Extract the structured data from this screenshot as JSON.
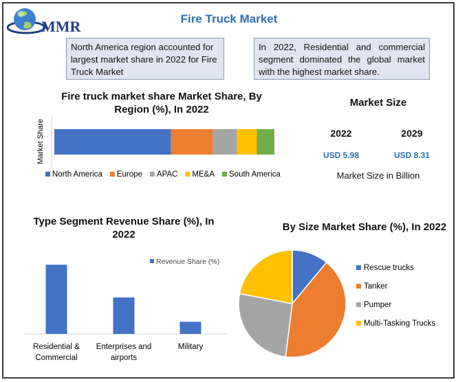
{
  "header": {
    "title": "Fire Truck Market",
    "logo_text": "MMR"
  },
  "notes": {
    "left": "North America region accounted for largest market share in 2022 for Fire Truck Market",
    "right": "In 2022, Residential and commercial segment dominated the global market with the highest market share."
  },
  "market_size": {
    "title": "Market Size",
    "years": [
      "2022",
      "2029"
    ],
    "values": [
      "USD 5.98",
      "USD 8.31"
    ],
    "unit_label": "Market Size in Billion"
  },
  "colors": {
    "blue": "#4472c4",
    "orange": "#ed7d31",
    "gray": "#a5a5a5",
    "yellow": "#ffc000",
    "green": "#70ad47",
    "title_blue": "#2b6fb6"
  },
  "chart_data": [
    {
      "type": "bar",
      "orientation": "horizontal-stacked",
      "title": "Fire truck market share Market Share, By Region (%), In 2022",
      "ylabel": "Market Share",
      "xlim": [
        0,
        100
      ],
      "legend_position": "bottom",
      "series": [
        {
          "name": "North America",
          "value": 53,
          "color": "#4472c4"
        },
        {
          "name": "Europe",
          "value": 19,
          "color": "#ed7d31"
        },
        {
          "name": "APAC",
          "value": 11,
          "color": "#a5a5a5"
        },
        {
          "name": "ME&A",
          "value": 9,
          "color": "#ffc000"
        },
        {
          "name": "South America",
          "value": 8,
          "color": "#70ad47"
        }
      ]
    },
    {
      "type": "bar",
      "title": "Type Segment Revenue Share (%), In 2022",
      "categories": [
        "Residential & Commercial",
        "Enterprises and airports",
        "Military"
      ],
      "series": [
        {
          "name": "Revenue Share (%)",
          "values": [
            57,
            30,
            10
          ],
          "color": "#4472c4"
        }
      ],
      "ylim": [
        0,
        60
      ],
      "grid": false,
      "legend_position": "top-right"
    },
    {
      "type": "pie",
      "title": "By Size Market Share (%), In 2022",
      "legend_position": "right",
      "slices": [
        {
          "name": "Rescue trucks",
          "value": 11,
          "color": "#4472c4"
        },
        {
          "name": "Tanker",
          "value": 41,
          "color": "#ed7d31"
        },
        {
          "name": "Pumper",
          "value": 26,
          "color": "#a5a5a5"
        },
        {
          "name": "Multi-Tasking Trucks",
          "value": 22,
          "color": "#ffc000"
        }
      ]
    }
  ]
}
